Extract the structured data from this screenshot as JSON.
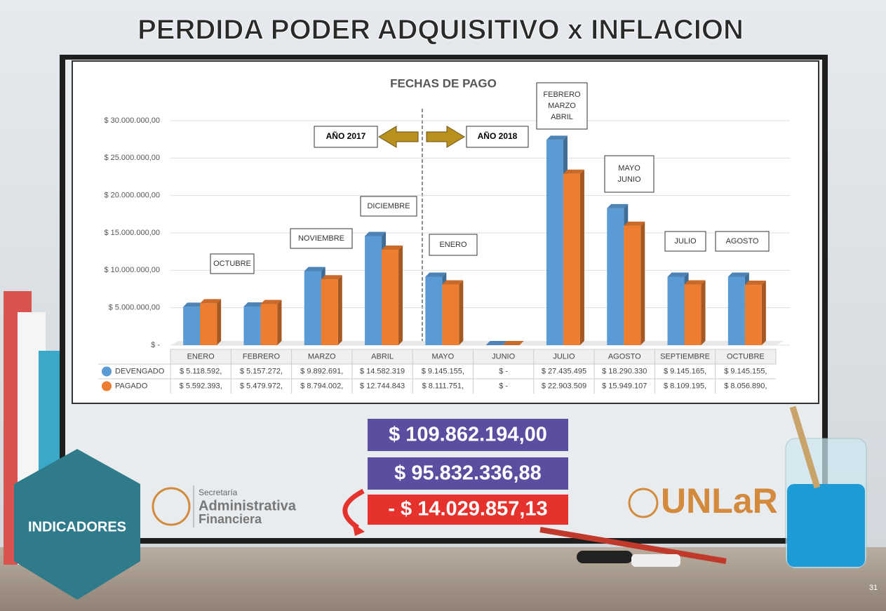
{
  "slide_title": "PERDIDA PODER ADQUISITIVO x INFLACION",
  "chart_data": {
    "type": "bar",
    "title": "FECHAS DE PAGO",
    "categories": [
      "ENERO",
      "FEBRERO",
      "MARZO",
      "ABRIL",
      "MAYO",
      "JUNIO",
      "JULIO",
      "AGOSTO",
      "SEPTIEMBRE",
      "OCTUBRE"
    ],
    "series": [
      {
        "name": "DEVENGADO",
        "color": "#5b9bd5",
        "values": [
          5118592,
          5157272,
          9892691,
          14582319,
          9145155,
          0,
          27435495,
          18290330,
          9145165,
          9145155
        ],
        "value_labels": [
          "$ 5.118.592,",
          "$ 5.157.272,",
          "$ 9.892.691,",
          "$ 14.582.319",
          "$ 9.145.155,",
          "$ -",
          "$ 27.435.495",
          "$ 18.290.330",
          "$ 9.145.165,",
          "$ 9.145.155,"
        ]
      },
      {
        "name": "PAGADO",
        "color": "#ed7d31",
        "values": [
          5592393,
          5479972,
          8794002,
          12744843,
          8111751,
          0,
          22903509,
          15949107,
          8109195,
          8056890
        ],
        "value_labels": [
          "$ 5.592.393,",
          "$ 5.479.972,",
          "$ 8.794.002,",
          "$ 12.744.843",
          "$ 8.111.751,",
          "$ -",
          "$ 22.903.509",
          "$ 15.949.107",
          "$ 8.109.195,",
          "$ 8.056.890,"
        ]
      }
    ],
    "ylim": [
      0,
      30000000
    ],
    "yticks": [
      {
        "value": 0,
        "label": "$ -"
      },
      {
        "value": 5000000,
        "label": "$ 5.000.000,00"
      },
      {
        "value": 10000000,
        "label": "$ 10.000.000,00"
      },
      {
        "value": 15000000,
        "label": "$ 15.000.000,00"
      },
      {
        "value": 20000000,
        "label": "$ 20.000.000,00"
      },
      {
        "value": 25000000,
        "label": "$ 25.000.000,00"
      },
      {
        "value": 30000000,
        "label": "$ 30.000.000,00"
      }
    ],
    "grid": true,
    "annotations": [
      [
        "OCTUBRE"
      ],
      [
        "NOVIEMBRE"
      ],
      [
        "DICIEMBRE"
      ],
      [
        "ENERO"
      ],
      [
        "FEBRERO",
        "MARZO",
        "ABRIL"
      ],
      [
        "MAYO",
        "JUNIO"
      ],
      [
        "JULIO"
      ],
      [
        "AGOSTO"
      ]
    ],
    "year_labels": [
      "AÑO 2017",
      "AÑO 2018"
    ]
  },
  "totals": [
    "$ 109.862.194,00",
    "$ 95.832.336,88",
    "- $ 14.029.857,13"
  ],
  "section": "INDICADORES",
  "logo_left": [
    "Secretaría",
    "Administrativa",
    "Financiera"
  ],
  "logo_right": "UNLaR",
  "page_number": "31"
}
